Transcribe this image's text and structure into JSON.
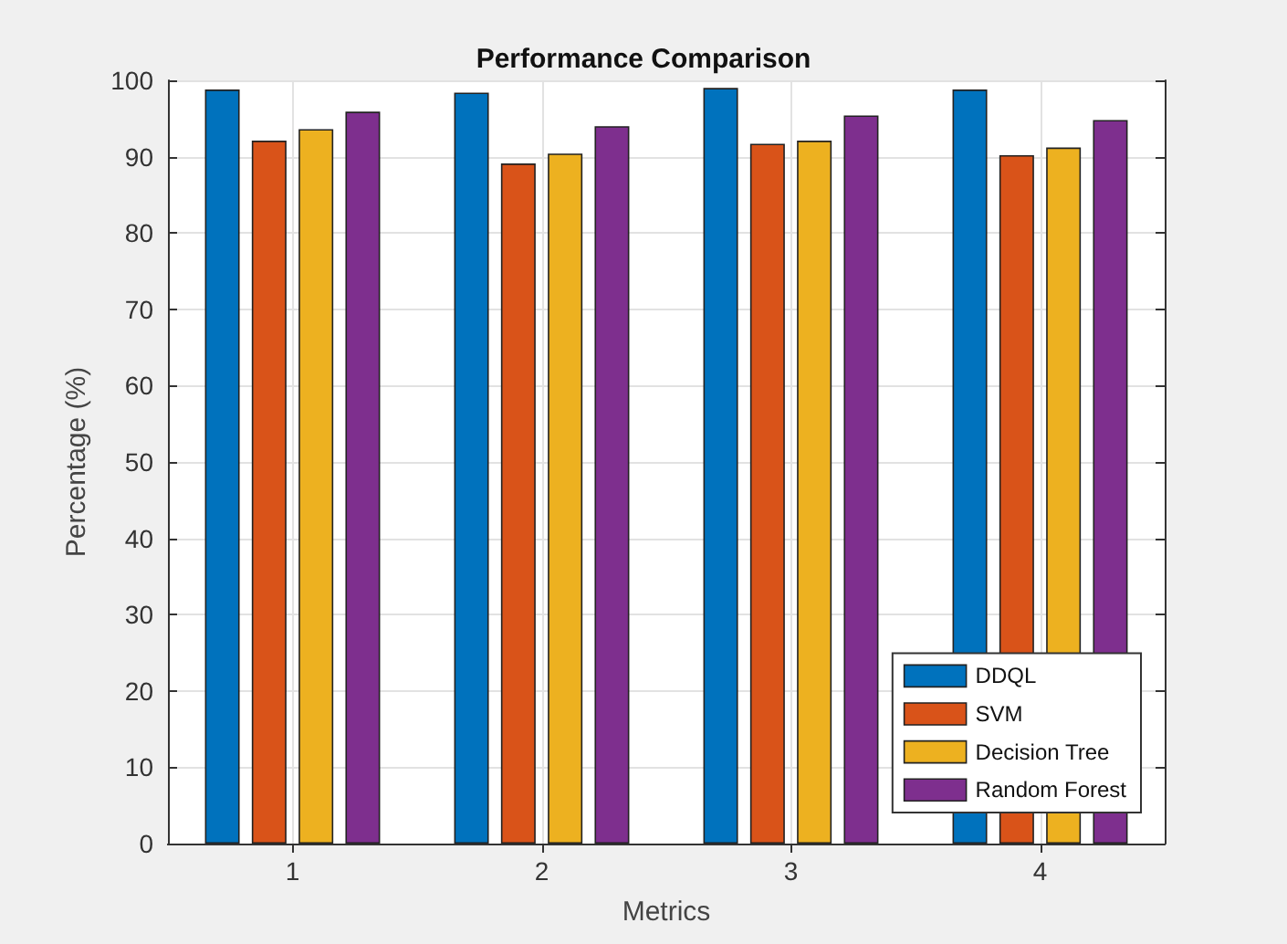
{
  "chart_data": {
    "type": "bar",
    "title": "Performance Comparison",
    "xlabel": "Metrics",
    "ylabel": "Percentage (%)",
    "categories": [
      "1",
      "2",
      "3",
      "4"
    ],
    "series": [
      {
        "name": "DDQL",
        "color": "#0072bd",
        "values": [
          98.8,
          98.4,
          99.0,
          98.8
        ]
      },
      {
        "name": "SVM",
        "color": "#d95319",
        "values": [
          92.1,
          89.1,
          91.7,
          90.2
        ]
      },
      {
        "name": "Decision Tree",
        "color": "#edb120",
        "values": [
          93.6,
          90.4,
          92.1,
          91.2
        ]
      },
      {
        "name": "Random Forest",
        "color": "#7e2f8e",
        "values": [
          95.9,
          94.0,
          95.4,
          94.8
        ]
      }
    ],
    "ylim": [
      0,
      100
    ],
    "yticks": [
      0,
      10,
      20,
      30,
      40,
      50,
      60,
      70,
      80,
      90,
      100
    ],
    "grid": true,
    "legend": "bottom right"
  }
}
